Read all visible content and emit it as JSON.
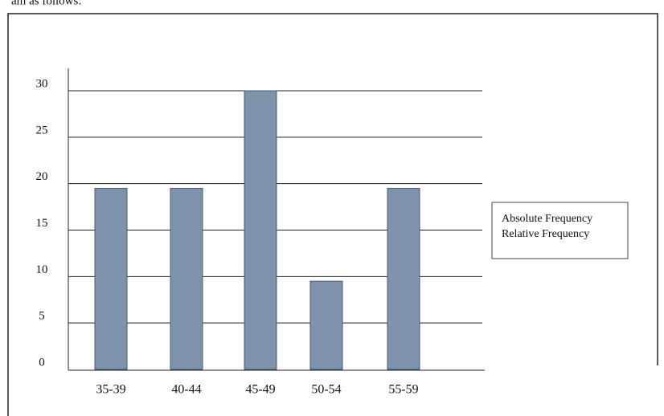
{
  "header_text": "am as follows:",
  "chart_data": {
    "type": "bar",
    "categories": [
      "35-39",
      "40-44",
      "45-49",
      "50-54",
      "55-59"
    ],
    "values": [
      19.5,
      19.5,
      30,
      9.5,
      19.5
    ],
    "color": "#7f93ad",
    "ylim": [
      0,
      30
    ],
    "yticks": [
      0,
      5,
      10,
      15,
      20,
      25,
      30
    ],
    "grid": true,
    "legend": [
      "Absolute Frequency",
      "Relative Frequency"
    ]
  }
}
